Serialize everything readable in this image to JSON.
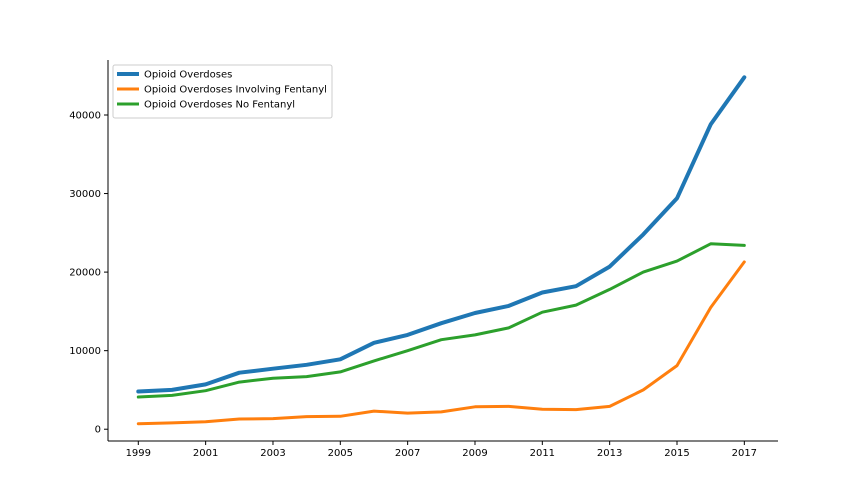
{
  "chart_data": {
    "type": "line",
    "title": "",
    "xlabel": "",
    "ylabel": "",
    "x": [
      1999,
      2000,
      2001,
      2002,
      2003,
      2004,
      2005,
      2006,
      2007,
      2008,
      2009,
      2010,
      2011,
      2012,
      2013,
      2014,
      2015,
      2016,
      2017
    ],
    "xticks": [
      "1999",
      "2001",
      "2003",
      "2005",
      "2007",
      "2009",
      "2011",
      "2013",
      "2015",
      "2017"
    ],
    "yticks": [
      "0",
      "10000",
      "20000",
      "30000",
      "40000"
    ],
    "xlim": [
      1998.1,
      2018
    ],
    "ylim": [
      -1500,
      47000
    ],
    "grid": false,
    "legend_position": "top-left",
    "series": [
      {
        "name": "Opioid Overdoses",
        "color": "#1f77b4",
        "values": [
          4800,
          5000,
          5700,
          7200,
          7700,
          8200,
          8900,
          11000,
          12000,
          13500,
          14800,
          15700,
          17400,
          18200,
          20700,
          24800,
          29400,
          38800,
          44800
        ]
      },
      {
        "name": "Opioid Overdoses Involving Fentanyl",
        "color": "#ff7f0e",
        "values": [
          700,
          800,
          950,
          1300,
          1350,
          1600,
          1650,
          2300,
          2050,
          2200,
          2850,
          2900,
          2550,
          2500,
          2900,
          5000,
          8100,
          15500,
          21300
        ]
      },
      {
        "name": "Opioid Overdoses No Fentanyl",
        "color": "#2ca02c",
        "values": [
          4100,
          4300,
          4900,
          6000,
          6500,
          6700,
          7300,
          8700,
          10000,
          11400,
          12000,
          12900,
          14900,
          15800,
          17800,
          20000,
          21400,
          23600,
          23400
        ]
      }
    ]
  }
}
